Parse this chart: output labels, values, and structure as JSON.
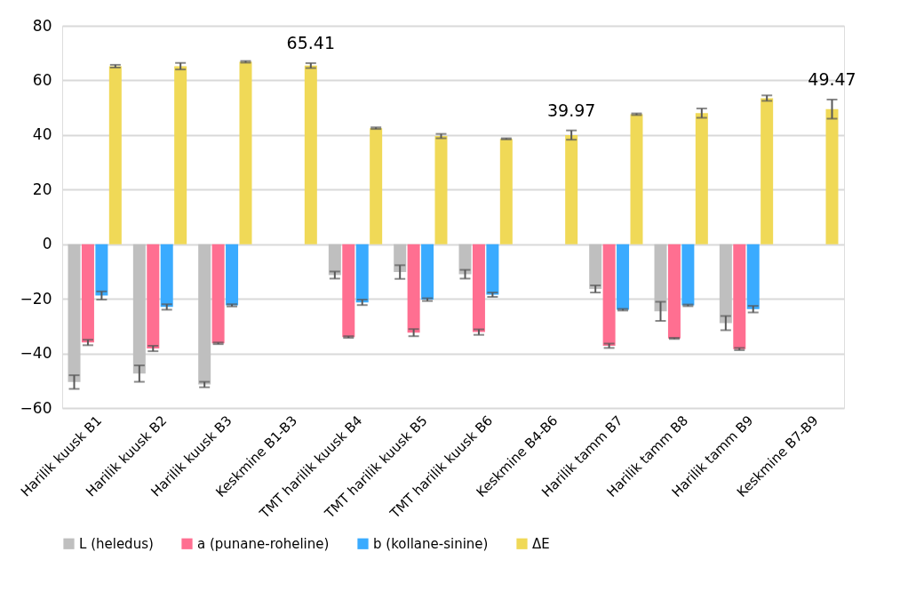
{
  "chart_data": {
    "type": "bar",
    "categories": [
      "Harilik kuusk B1",
      "Harilik kuusk B2",
      "Harilik kuusk B3",
      "Keskmine B1-B3",
      "TMT harilik kuusk B4",
      "TMT harilik kuusk B5",
      "TMT harilik kuusk B6",
      "Keskmine B4-B6",
      "Harilik tamm B7",
      "Harilik tamm B8",
      "Harilik tamm B9",
      "Keskmine B7-B9"
    ],
    "series": [
      {
        "name": "L (heledus)",
        "color": "#bfbfbf",
        "values": [
          -50.5,
          -47.4,
          -51.4,
          null,
          -11.3,
          -10.2,
          -11.0,
          null,
          -16.4,
          -24.6,
          -28.9,
          null
        ],
        "errors": [
          2.5,
          3.0,
          1.0,
          null,
          1.3,
          2.5,
          1.6,
          null,
          1.3,
          3.5,
          2.6,
          null
        ]
      },
      {
        "name": "a (punane-roheline)",
        "color": "#ff6f91",
        "values": [
          -36.0,
          -38.2,
          -36.3,
          null,
          -34.0,
          -32.4,
          -32.2,
          null,
          -37.2,
          -34.5,
          -38.4,
          null
        ],
        "errors": [
          1.0,
          1.0,
          0.3,
          null,
          0.3,
          1.3,
          1.0,
          null,
          0.8,
          0.2,
          0.4,
          null
        ]
      },
      {
        "name": "b (kollane-sinine)",
        "color": "#3aabff",
        "values": [
          -18.8,
          -23.0,
          -22.4,
          null,
          -21.3,
          -20.3,
          -18.5,
          null,
          -24.0,
          -22.4,
          -23.8,
          null
        ],
        "errors": [
          1.5,
          1.0,
          0.4,
          null,
          1.0,
          0.5,
          0.8,
          null,
          0.3,
          0.3,
          1.2,
          null
        ]
      },
      {
        "name": "ΔE",
        "color": "#f0d957",
        "values": [
          65.2,
          65.2,
          66.8,
          65.41,
          42.5,
          39.6,
          38.6,
          39.97,
          47.6,
          48.0,
          53.5,
          49.47
        ],
        "errors": [
          0.5,
          1.2,
          0.3,
          0.9,
          0.3,
          0.8,
          0.2,
          1.7,
          0.3,
          1.7,
          1.0,
          3.5
        ],
        "value_labels": [
          null,
          null,
          null,
          "65.41",
          null,
          null,
          null,
          "39.97",
          null,
          null,
          null,
          "49.47"
        ]
      }
    ],
    "ylim": [
      -60,
      80
    ],
    "yticks": [
      -60,
      -40,
      -20,
      0,
      20,
      40,
      60,
      80
    ],
    "grid": "y",
    "legend": "bottom"
  }
}
